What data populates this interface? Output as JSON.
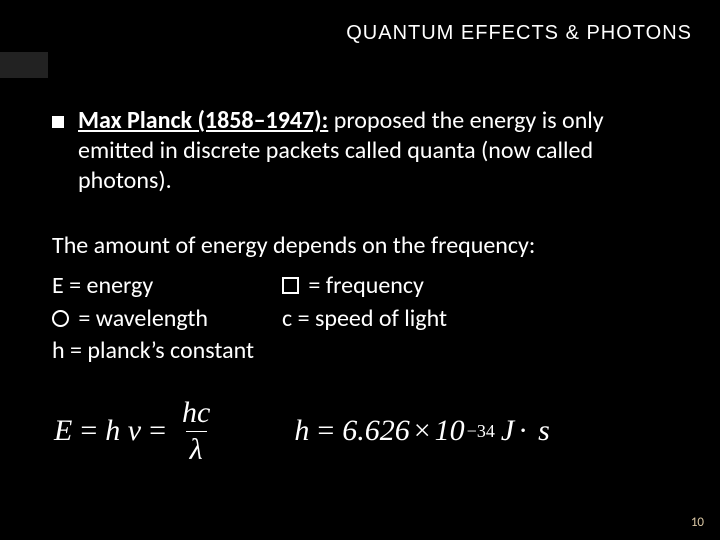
{
  "colors": {
    "background": "#000000",
    "text": "#ffffff",
    "accent_block": "#222222",
    "page_num": "#d9c6a3"
  },
  "header": {
    "title": "QUANTUM EFFECTS & PHOTONS"
  },
  "bullet": {
    "lead": "Max Planck (1858–1947):",
    "rest": " proposed the energy is only emitted in discrete packets called quanta (now called photons)."
  },
  "para1": "The amount of energy depends on the frequency:",
  "defs": {
    "energy": "E = energy",
    "frequency": " = frequency",
    "wavelength": " = wavelength",
    "speed": "c = speed of light",
    "planck": "h = planck’s constant"
  },
  "formula_left": {
    "left": "E",
    "eq1": "=",
    "mid": "h ν",
    "eq2": "=",
    "num": "hc",
    "den": "λ"
  },
  "formula_right": {
    "h": "h",
    "eq": "=",
    "mantissa": "6.626",
    "times": "×",
    "base": "10",
    "exp": "−34",
    "unit1": "J",
    "dot": "·",
    "unit2": "s"
  },
  "page_number": "10"
}
